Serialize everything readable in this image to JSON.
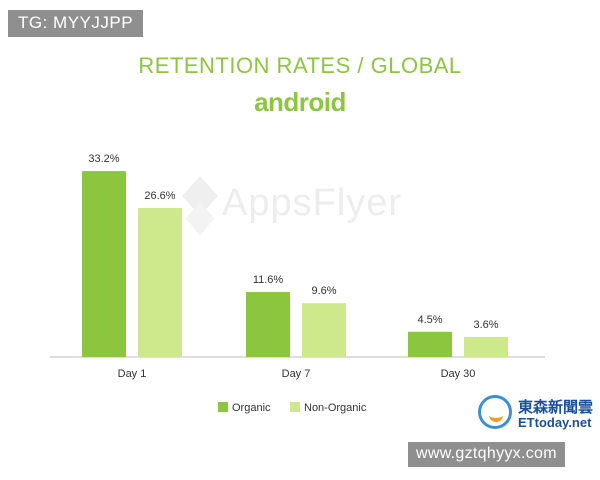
{
  "overlay": {
    "tag": "TG: MYYJJPP",
    "url": "www.gztqhyyx.com"
  },
  "source": {
    "name_cn": "東森新聞雲",
    "name_en": "ETtoday.net"
  },
  "watermark": {
    "text": "AppsFlyer"
  },
  "colors": {
    "organic": "#8cc63f",
    "non_organic": "#cde98c",
    "title": "#8cc63f",
    "axis": "#bdbdbd"
  },
  "chart_data": {
    "type": "bar",
    "title": "RETENTION RATES / GLOBAL",
    "subtitle": "android",
    "categories": [
      "Day 1",
      "Day 7",
      "Day 30"
    ],
    "series": [
      {
        "name": "Organic",
        "values": [
          33.2,
          11.6,
          4.5
        ],
        "labels": [
          "33.2%",
          "11.6%",
          "4.5%"
        ]
      },
      {
        "name": "Non-Organic",
        "values": [
          26.6,
          9.6,
          3.6
        ],
        "labels": [
          "26.6%",
          "9.6%",
          "3.6%"
        ]
      }
    ],
    "ylim": [
      0,
      35
    ],
    "grid": false,
    "legend": "bottom"
  }
}
